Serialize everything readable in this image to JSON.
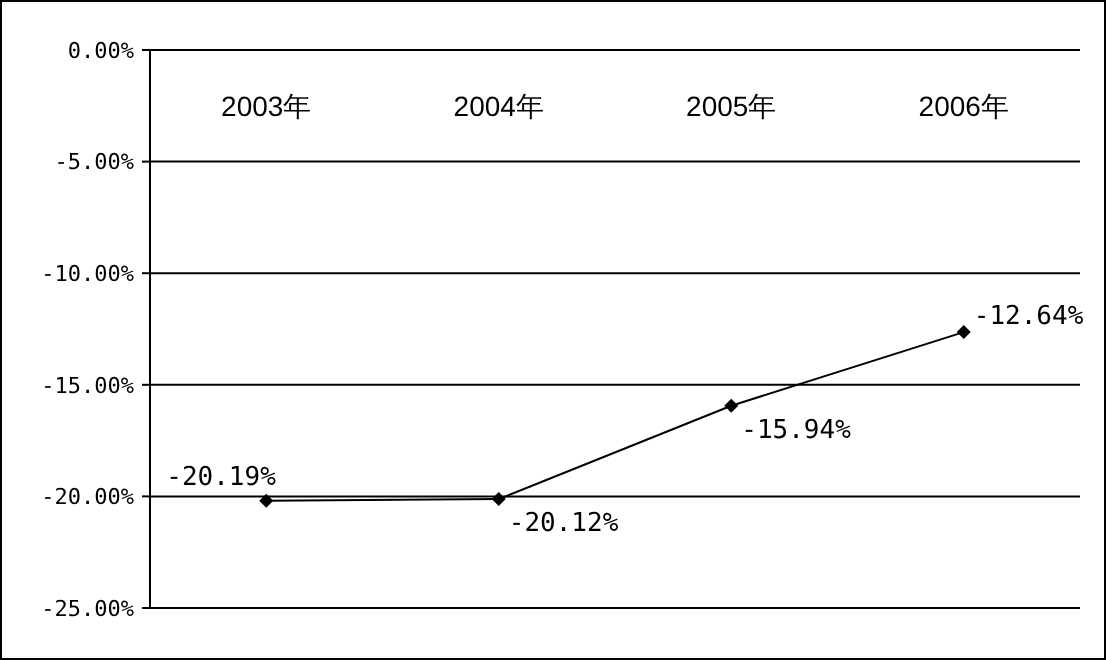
{
  "chart_data": {
    "type": "line",
    "categories": [
      "2003年",
      "2004年",
      "2005年",
      "2006年"
    ],
    "series": [
      {
        "color": "#000000",
        "values": [
          -20.19,
          -20.12,
          -15.94,
          -12.64
        ],
        "value_labels": [
          "-20.19%",
          "-20.12%",
          "-15.94%",
          "-12.64%"
        ]
      }
    ],
    "ylim": [
      -25,
      0
    ],
    "yticks": [
      {
        "value": 0,
        "label": "0.00%"
      },
      {
        "value": -5,
        "label": "-5.00%"
      },
      {
        "value": -10,
        "label": "-10.00%"
      },
      {
        "value": -15,
        "label": "-15.00%"
      },
      {
        "value": -20,
        "label": "-20.00%"
      },
      {
        "value": -25,
        "label": "-25.00%"
      }
    ],
    "grid": "y",
    "marker": "diamond",
    "line_style": "solid"
  }
}
